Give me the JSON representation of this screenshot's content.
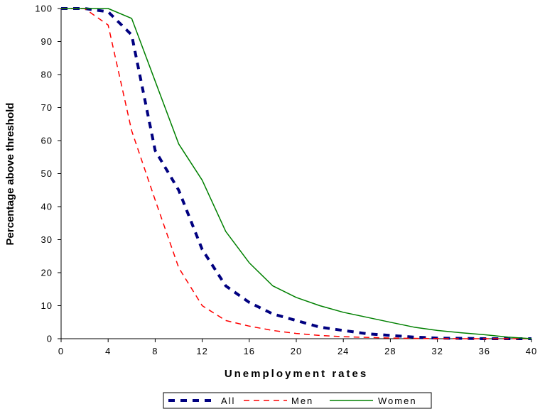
{
  "chart_data": {
    "type": "line",
    "title": "",
    "xlabel": "Unemployment rates",
    "ylabel": "Percentage above threshold",
    "xlim": [
      0,
      40
    ],
    "ylim": [
      0,
      100
    ],
    "xticks": [
      "0",
      "4",
      "8",
      "12",
      "16",
      "20",
      "24",
      "28",
      "32",
      "36",
      "40"
    ],
    "yticks": [
      "0",
      "10",
      "20",
      "30",
      "40",
      "50",
      "60",
      "70",
      "80",
      "90",
      "100"
    ],
    "grid": false,
    "legend_position": "bottom",
    "x": [
      0,
      2,
      4,
      6,
      8,
      10,
      12,
      14,
      16,
      18,
      20,
      22,
      24,
      26,
      28,
      30,
      32,
      34,
      36,
      38,
      40
    ],
    "series": [
      {
        "name": "All",
        "color": "#000080",
        "style": "dashed-thick",
        "values": [
          100,
          100,
          99,
          92,
          57,
          45,
          27,
          16,
          11,
          7.5,
          5.5,
          3.5,
          2.5,
          1.5,
          1,
          0.5,
          0.2,
          0.1,
          0,
          0,
          0
        ]
      },
      {
        "name": "Men",
        "color": "#ff0000",
        "style": "dashed",
        "values": [
          100,
          100,
          95,
          63,
          42,
          21.5,
          10,
          5.5,
          3.8,
          2.5,
          1.6,
          1,
          0.6,
          0.4,
          0.2,
          0.1,
          0.05,
          0,
          0,
          0,
          0
        ]
      },
      {
        "name": "Women",
        "color": "#008000",
        "style": "solid",
        "values": [
          100,
          100,
          100,
          97,
          78,
          59,
          48,
          32.5,
          23,
          16,
          12.5,
          10,
          8,
          6.5,
          5,
          3.5,
          2.5,
          1.8,
          1.2,
          0.5,
          0
        ]
      }
    ]
  }
}
